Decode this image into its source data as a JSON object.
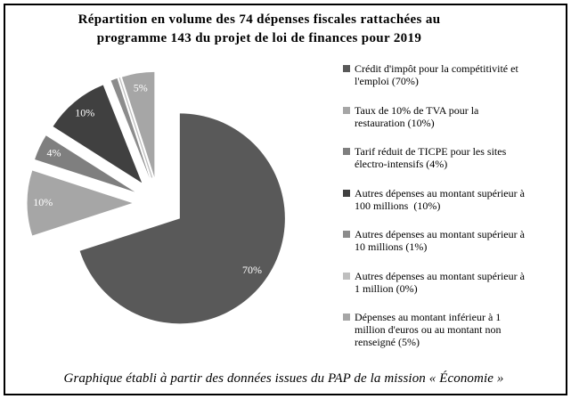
{
  "title": {
    "line1": "Répartition en volume des 74 dépenses fiscales rattachées au",
    "line2": "programme 143 du projet de loi de finances pour 2019"
  },
  "caption": "Graphique établi à partir des données issues du PAP de la mission « Économie »",
  "chart_data": {
    "type": "pie",
    "title": "Répartition en volume des 74 dépenses fiscales rattachées au programme 143 du projet de loi de finances pour 2019",
    "legend_position": "right",
    "exploded": true,
    "slices": [
      {
        "label": "Crédit d'impôt pour la compétitivité et\nl'emploi (70%)",
        "value": 70,
        "display": "70%",
        "color": "#595959"
      },
      {
        "label": "Taux de 10% de TVA pour la\nrestauration (10%)",
        "value": 10,
        "display": "10%",
        "color": "#a6a6a6"
      },
      {
        "label": "Tarif réduit de TICPE pour les sites\nélectro-intensifs (4%)",
        "value": 4,
        "display": "4%",
        "color": "#7f7f7f"
      },
      {
        "label": "Autres dépenses au montant supérieur à\n100 millions  (10%)",
        "value": 10,
        "display": "10%",
        "color": "#404040"
      },
      {
        "label": "Autres dépenses au montant supérieur à\n10 millions (1%)",
        "value": 1,
        "display": "",
        "color": "#8c8c8c"
      },
      {
        "label": "Autres dépenses au montant supérieur à\n1 million (0%)",
        "value": 0,
        "display": "",
        "color": "#bfbfbf"
      },
      {
        "label": "Dépenses au montant inférieur à 1\nmillion d'euros ou au montant non\nrenseigné (5%)",
        "value": 5,
        "display": "5%",
        "color": "#a6a6a6"
      }
    ]
  }
}
